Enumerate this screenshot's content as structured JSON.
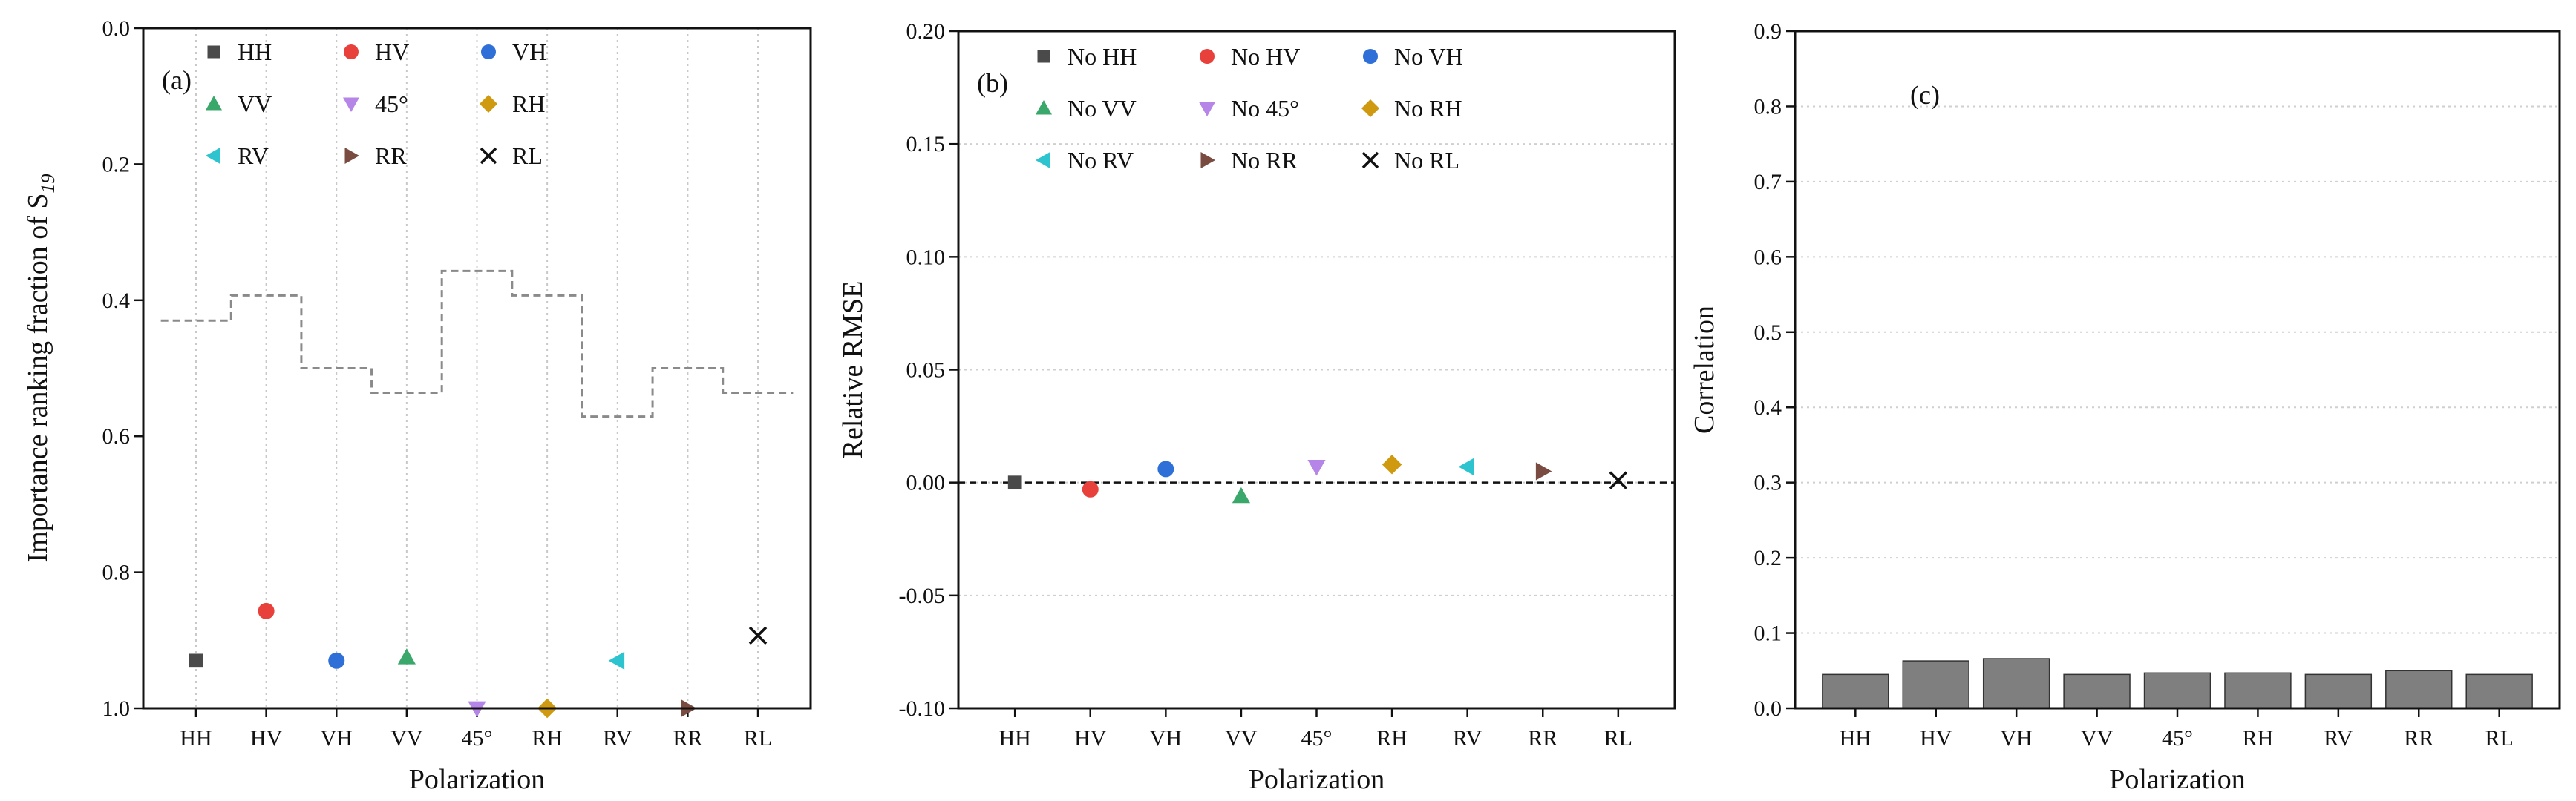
{
  "chart_data": [
    {
      "id": "a",
      "type": "scatter",
      "panel_label": "(a)",
      "categories": [
        "HH",
        "HV",
        "VH",
        "VV",
        "45°",
        "RH",
        "RV",
        "RR",
        "RL"
      ],
      "xlabel": "Polarization",
      "ylabel": "Importance ranking fraction of S",
      "ylabel_sub": "19",
      "ylim": [
        0.0,
        1.0
      ],
      "y_inverted": true,
      "yticks": [
        "0.0",
        "0.2",
        "0.4",
        "0.6",
        "0.8",
        "1.0"
      ],
      "vertical_grid": true,
      "series": [
        {
          "name": "HH",
          "marker": "square",
          "color": "#4a4a4a",
          "values": [
            0.93
          ]
        },
        {
          "name": "HV",
          "marker": "circle",
          "color": "#e8413c",
          "values": [
            0.857
          ]
        },
        {
          "name": "VH",
          "marker": "circle",
          "color": "#2e6fd8",
          "values": [
            0.93
          ]
        },
        {
          "name": "VV",
          "marker": "triangle-up",
          "color": "#3aa86b",
          "values": [
            0.925
          ]
        },
        {
          "name": "45°",
          "marker": "triangle-down",
          "color": "#b685e8",
          "values": [
            1.0
          ]
        },
        {
          "name": "RH",
          "marker": "diamond",
          "color": "#cf9a10",
          "values": [
            1.0
          ]
        },
        {
          "name": "RV",
          "marker": "triangle-left",
          "color": "#2ec4cf",
          "values": [
            0.93
          ]
        },
        {
          "name": "RR",
          "marker": "triangle-right",
          "color": "#7a4b40",
          "values": [
            1.0
          ]
        },
        {
          "name": "RL",
          "marker": "x",
          "color": "#111111",
          "values": [
            0.893
          ]
        }
      ],
      "threshold_step": {
        "name": "threshold",
        "style": "dashed-step",
        "color": "#8a8a8a",
        "values": [
          0.43,
          0.393,
          0.5,
          0.536,
          0.357,
          0.393,
          0.571,
          0.5,
          0.536
        ]
      },
      "legend": {
        "placement": "top-left",
        "columns": 3
      }
    },
    {
      "id": "b",
      "type": "scatter",
      "panel_label": "(b)",
      "categories": [
        "HH",
        "HV",
        "VH",
        "VV",
        "45°",
        "RH",
        "RV",
        "RR",
        "RL"
      ],
      "xlabel": "Polarization",
      "ylabel": "Relative RMSE",
      "ylim": [
        -0.1,
        0.2
      ],
      "yticks": [
        "-0.10",
        "-0.05",
        "0.00",
        "0.05",
        "0.10",
        "0.15",
        "0.20"
      ],
      "horizontal_grid": true,
      "reference_line": {
        "y": 0.0,
        "style": "dashed",
        "color": "#111111"
      },
      "series": [
        {
          "name": "No HH",
          "marker": "square",
          "color": "#4a4a4a",
          "values": [
            0.0
          ]
        },
        {
          "name": "No HV",
          "marker": "circle",
          "color": "#e8413c",
          "values": [
            -0.003
          ]
        },
        {
          "name": "No VH",
          "marker": "circle",
          "color": "#2e6fd8",
          "values": [
            0.006
          ]
        },
        {
          "name": "No VV",
          "marker": "triangle-up",
          "color": "#3aa86b",
          "values": [
            -0.006
          ]
        },
        {
          "name": "No 45°",
          "marker": "triangle-down",
          "color": "#b685e8",
          "values": [
            0.007
          ]
        },
        {
          "name": "No RH",
          "marker": "diamond",
          "color": "#cf9a10",
          "values": [
            0.008
          ]
        },
        {
          "name": "No RV",
          "marker": "triangle-left",
          "color": "#2ec4cf",
          "values": [
            0.007
          ]
        },
        {
          "name": "No RR",
          "marker": "triangle-right",
          "color": "#7a4b40",
          "values": [
            0.005
          ]
        },
        {
          "name": "No RL",
          "marker": "x",
          "color": "#111111",
          "values": [
            0.001
          ]
        }
      ],
      "legend": {
        "placement": "top-left",
        "columns": 3
      }
    },
    {
      "id": "c",
      "type": "bar",
      "panel_label": "(c)",
      "categories": [
        "HH",
        "HV",
        "VH",
        "VV",
        "45°",
        "RH",
        "RV",
        "RR",
        "RL"
      ],
      "values": [
        0.045,
        0.063,
        0.066,
        0.045,
        0.047,
        0.047,
        0.045,
        0.05,
        0.045
      ],
      "bar_color": "#7f7f7f",
      "xlabel": "Polarization",
      "ylabel": "Correlation",
      "ylim": [
        0.0,
        0.9
      ],
      "yticks": [
        "0.0",
        "0.1",
        "0.2",
        "0.3",
        "0.4",
        "0.5",
        "0.6",
        "0.7",
        "0.8",
        "0.9"
      ],
      "horizontal_grid": true
    }
  ]
}
